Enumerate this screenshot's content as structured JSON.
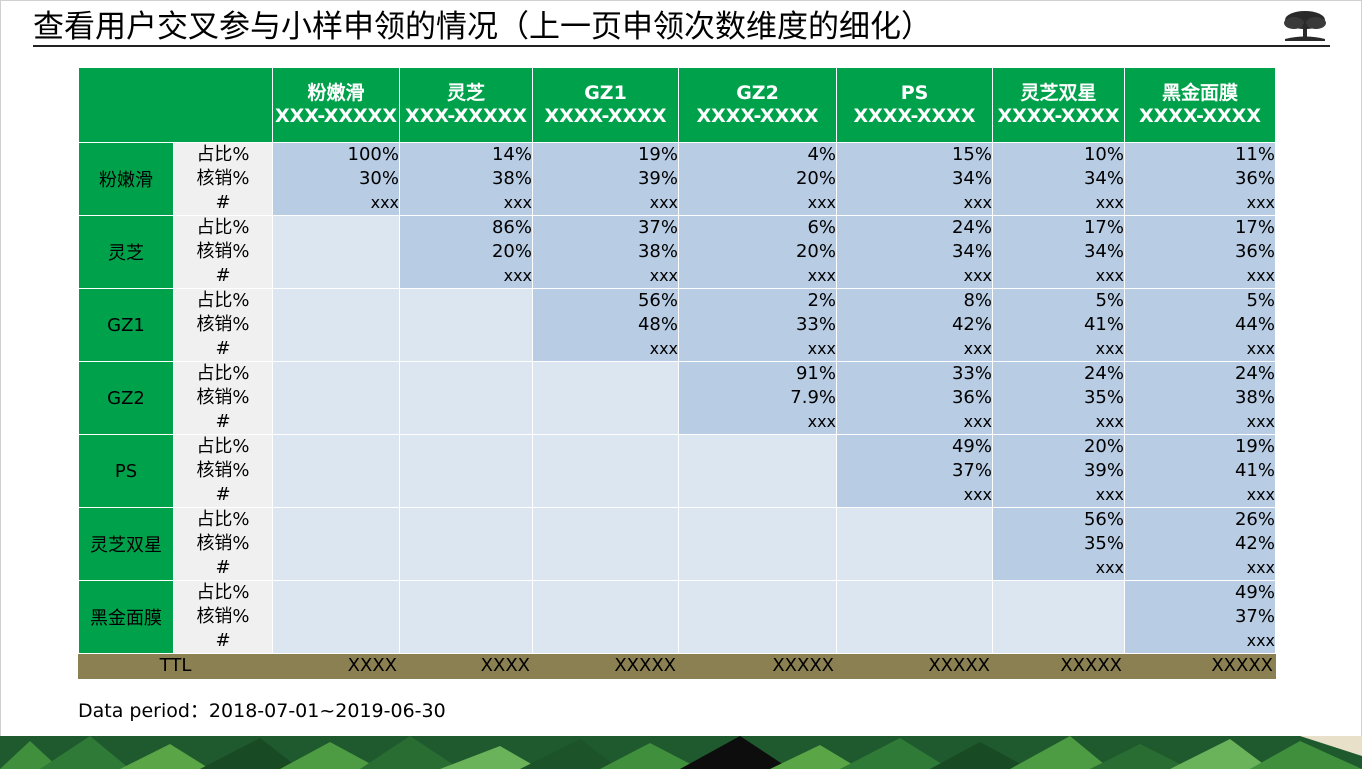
{
  "title": "查看用户交叉参与小样申领的情况（上一页申领次数维度的细化）",
  "columns": [
    {
      "name": "粉嫩滑",
      "code": "XXX-XXXXX"
    },
    {
      "name": "灵芝",
      "code": "XXX-XXXXX"
    },
    {
      "name": "GZ1",
      "code": "XXXX-XXXX"
    },
    {
      "name": "GZ2",
      "code": "XXXX-XXXX"
    },
    {
      "name": "PS",
      "code": "XXXX-XXXX"
    },
    {
      "name": "灵芝双星",
      "code": "XXXX-XXXX"
    },
    {
      "name": "黑金面膜",
      "code": "XXXX-XXXX"
    }
  ],
  "metric_labels": [
    "占比%",
    "核销%",
    "#"
  ],
  "rows": [
    {
      "name": "粉嫩滑",
      "cells": [
        {
          "share": "100%",
          "redeem": "30%",
          "count": "xxx"
        },
        {
          "share": "14%",
          "redeem": "38%",
          "count": "xxx"
        },
        {
          "share": "19%",
          "redeem": "39%",
          "count": "xxx"
        },
        {
          "share": "4%",
          "redeem": "20%",
          "count": "xxx"
        },
        {
          "share": "15%",
          "redeem": "34%",
          "count": "xxx"
        },
        {
          "share": "10%",
          "redeem": "34%",
          "count": "xxx"
        },
        {
          "share": "11%",
          "redeem": "36%",
          "count": "xxx"
        }
      ]
    },
    {
      "name": "灵芝",
      "cells": [
        null,
        {
          "share": "86%",
          "redeem": "20%",
          "count": "xxx"
        },
        {
          "share": "37%",
          "redeem": "38%",
          "count": "xxx"
        },
        {
          "share": "6%",
          "redeem": "20%",
          "count": "xxx"
        },
        {
          "share": "24%",
          "redeem": "34%",
          "count": "xxx"
        },
        {
          "share": "17%",
          "redeem": "34%",
          "count": "xxx"
        },
        {
          "share": "17%",
          "redeem": "36%",
          "count": "xxx"
        }
      ]
    },
    {
      "name": "GZ1",
      "cells": [
        null,
        null,
        {
          "share": "56%",
          "redeem": "48%",
          "count": "xxx"
        },
        {
          "share": "2%",
          "redeem": "33%",
          "count": "xxx"
        },
        {
          "share": "8%",
          "redeem": "42%",
          "count": "xxx"
        },
        {
          "share": "5%",
          "redeem": "41%",
          "count": "xxx"
        },
        {
          "share": "5%",
          "redeem": "44%",
          "count": "xxx"
        }
      ]
    },
    {
      "name": "GZ2",
      "cells": [
        null,
        null,
        null,
        {
          "share": "91%",
          "redeem": "7.9%",
          "count": "xxx"
        },
        {
          "share": "33%",
          "redeem": "36%",
          "count": "xxx"
        },
        {
          "share": "24%",
          "redeem": "35%",
          "count": "xxx"
        },
        {
          "share": "24%",
          "redeem": "38%",
          "count": "xxx"
        }
      ]
    },
    {
      "name": "PS",
      "cells": [
        null,
        null,
        null,
        null,
        {
          "share": "49%",
          "redeem": "37%",
          "count": "xxx"
        },
        {
          "share": "20%",
          "redeem": "39%",
          "count": "xxx"
        },
        {
          "share": "19%",
          "redeem": "41%",
          "count": "xxx"
        }
      ]
    },
    {
      "name": "灵芝双星",
      "cells": [
        null,
        null,
        null,
        null,
        null,
        {
          "share": "56%",
          "redeem": "35%",
          "count": "xxx"
        },
        {
          "share": "26%",
          "redeem": "42%",
          "count": "xxx"
        }
      ]
    },
    {
      "name": "黑金面膜",
      "cells": [
        null,
        null,
        null,
        null,
        null,
        null,
        {
          "share": "49%",
          "redeem": "37%",
          "count": "xxx"
        }
      ]
    }
  ],
  "ttl": {
    "label": "TTL",
    "values": [
      "XXXX",
      "XXXX",
      "XXXXX",
      "XXXXX",
      "XXXXX",
      "XXXXX",
      "XXXXX"
    ]
  },
  "footnote": "Data period：2018-07-01~2019-06-30",
  "colors": {
    "header_green": "#00a14b",
    "cell_light": "#dce6f1",
    "cell_dark": "#b8cce4",
    "ttl_bar": "#8b8051",
    "metric_bg": "#f0f0f0"
  }
}
